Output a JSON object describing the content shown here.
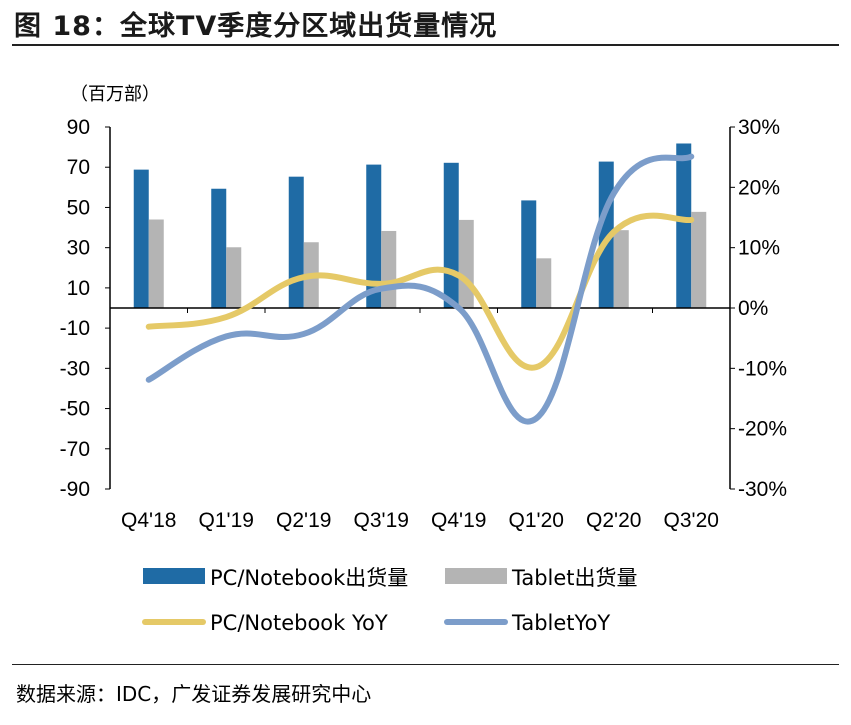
{
  "title": "图 18：全球TV季度分区域出货量情况",
  "unit": "（百万部）",
  "source": "数据来源：IDC，广发证券发展研究中心",
  "chart_data": {
    "type": "bar",
    "categories": [
      "Q4'18",
      "Q1'19",
      "Q2'19",
      "Q3'19",
      "Q4'19",
      "Q1'20",
      "Q2'20",
      "Q3'20"
    ],
    "y_left": {
      "range": [
        -90,
        90
      ],
      "ticks": [
        90,
        70,
        50,
        30,
        10,
        -10,
        -30,
        -50,
        -70,
        -90
      ]
    },
    "y_right": {
      "range": [
        -30,
        30
      ],
      "ticks": [
        "30%",
        "20%",
        "10%",
        "0%",
        "-10%",
        "-20%",
        "-30%"
      ],
      "unit": "%"
    },
    "series": [
      {
        "name": "PC/Notebook出货量",
        "type": "bar",
        "axis": "left",
        "color": "#1F6BA5",
        "values": [
          68.8,
          59.3,
          65.3,
          71.3,
          72.2,
          53.5,
          72.8,
          81.8
        ]
      },
      {
        "name": "Tablet出货量",
        "type": "bar",
        "axis": "left",
        "color": "#B4B4B4",
        "values": [
          44.0,
          30.2,
          32.7,
          38.3,
          43.8,
          24.7,
          38.7,
          47.8
        ]
      },
      {
        "name": "PC/Notebook YoY",
        "type": "line",
        "axis": "right",
        "color": "#E5C967",
        "values": [
          -3.1,
          -1.5,
          5.1,
          4.0,
          5.4,
          -9.8,
          12.6,
          14.6
        ]
      },
      {
        "name": "TabletYoY",
        "type": "line",
        "axis": "right",
        "color": "#7C9DCA",
        "values": [
          -11.9,
          -4.7,
          -4.3,
          3.2,
          0.0,
          -18.3,
          19.0,
          25.1
        ]
      }
    ],
    "legend": "bottom",
    "grid": false
  }
}
